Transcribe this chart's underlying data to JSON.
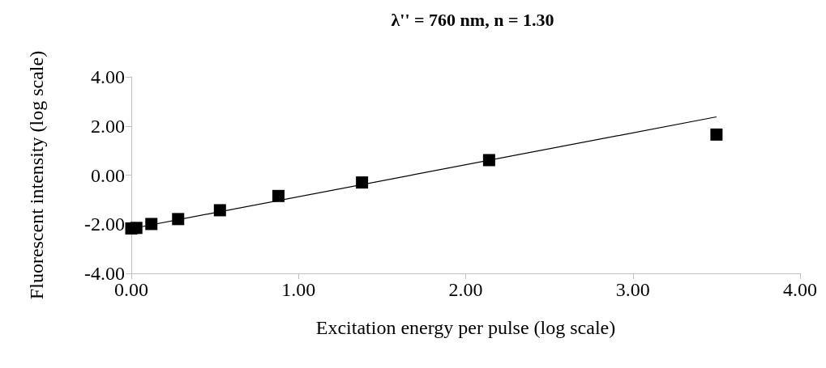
{
  "chart_data": {
    "type": "scatter",
    "title": "λ'' = 760 nm, n = 1.30",
    "xlabel": "Excitation energy per pulse (log scale)",
    "ylabel": "Fluorescent intensity (log scale)",
    "series": [
      {
        "color": "#000000",
        "marker": "square",
        "x": [
          0.0,
          0.03,
          0.12,
          0.28,
          0.53,
          0.88,
          1.38,
          2.14,
          3.5
        ],
        "values": [
          -2.17,
          -2.15,
          -1.99,
          -1.79,
          -1.43,
          -0.85,
          -0.3,
          0.61,
          1.65
        ]
      },
      {
        "type": "line",
        "color": "#000000",
        "marker": "none",
        "x": [
          0,
          3.5
        ],
        "values": [
          -2.18,
          2.37
        ]
      }
    ],
    "xlim": [
      0,
      4
    ],
    "xticks": [
      {
        "value": 0,
        "label": "0.00"
      },
      {
        "value": 1,
        "label": "1.00"
      },
      {
        "value": 2,
        "label": "2.00"
      },
      {
        "value": 3,
        "label": "3.00"
      },
      {
        "value": 4,
        "label": "4.00"
      }
    ],
    "ylim": [
      -4,
      4
    ],
    "yticks": [
      {
        "value": -4,
        "label": "-4.00"
      },
      {
        "value": -2,
        "label": "-2.00"
      },
      {
        "value": 0,
        "label": "0.00"
      },
      {
        "value": 2,
        "label": "2.00"
      },
      {
        "value": 4,
        "label": "4.00"
      }
    ],
    "grid": false
  }
}
